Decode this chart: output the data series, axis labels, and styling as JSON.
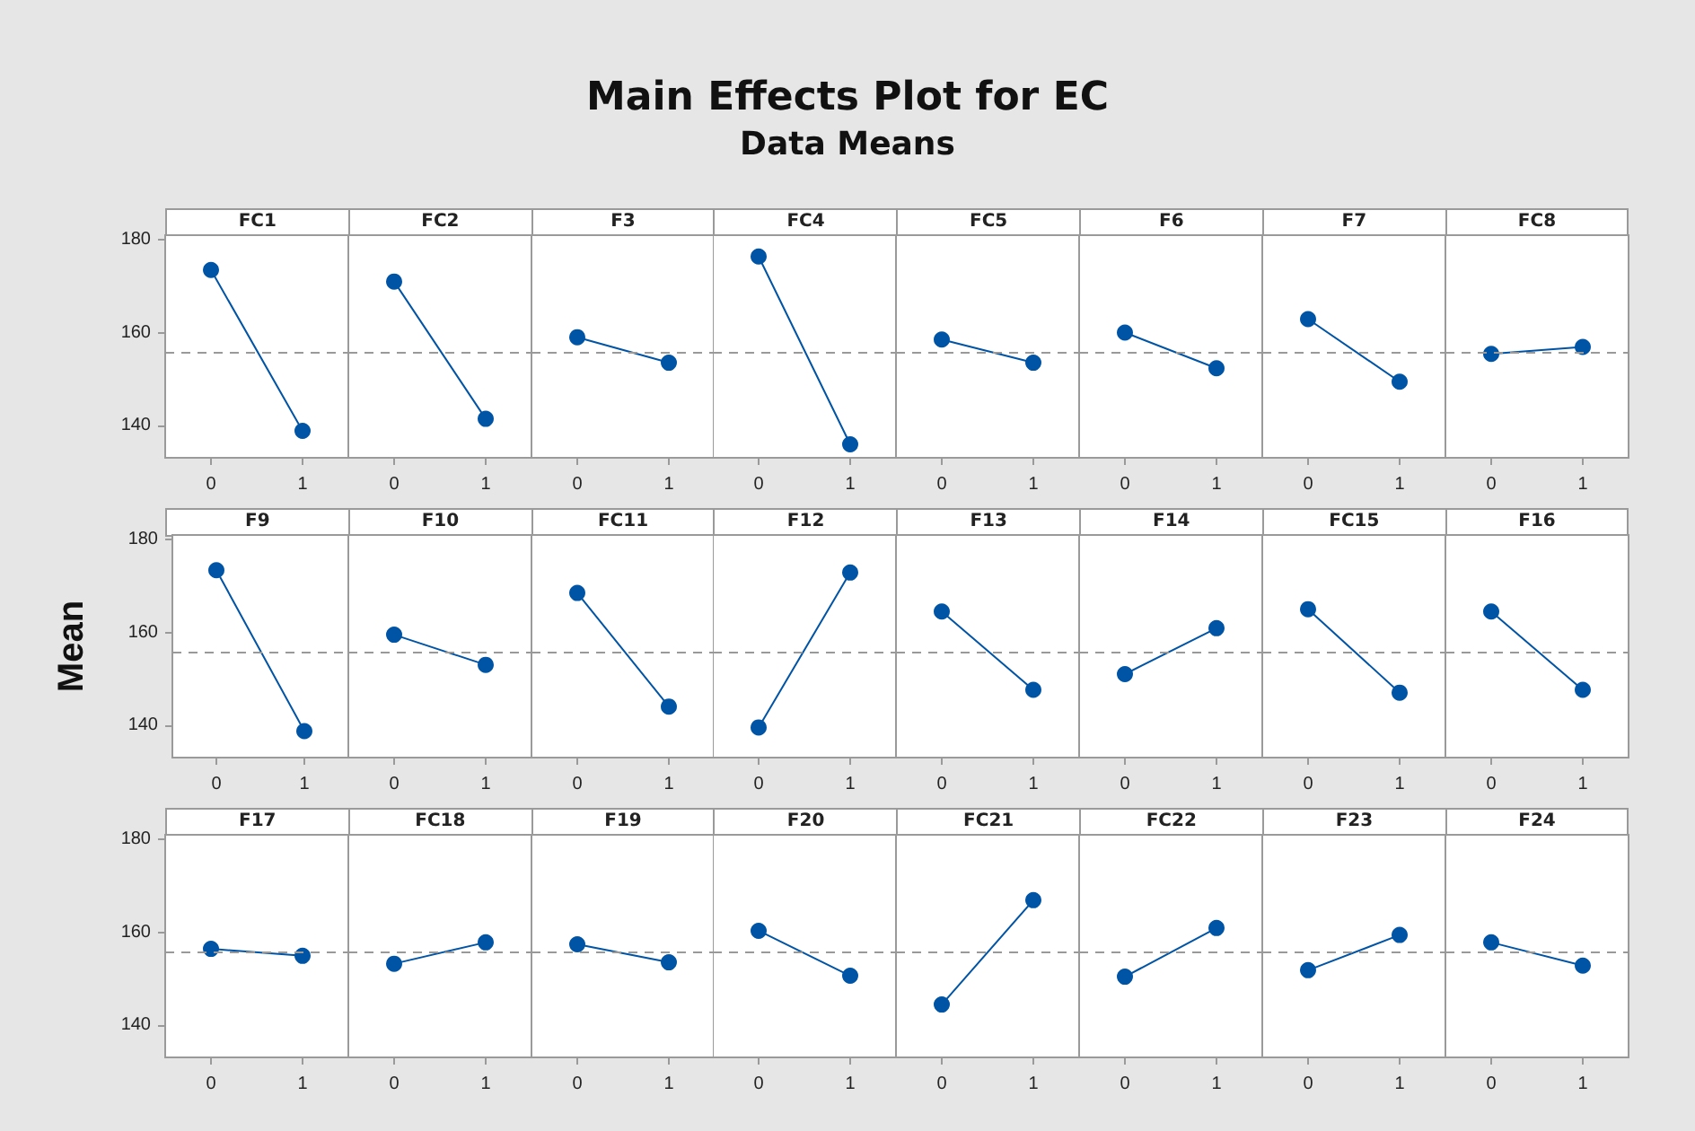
{
  "chart_data": [
    {
      "type": "other",
      "title": "Main Effects Plot for EC",
      "subtitle": "Data Means"
    },
    {
      "type": "line",
      "title": "FC1",
      "categories": [
        "0",
        "1"
      ],
      "series": [
        {
          "color": "#0054a6",
          "values": [
            173.5,
            138.8
          ]
        }
      ],
      "ylim": [
        133,
        181
      ],
      "yticks": [
        140,
        160,
        180
      ],
      "marker": "circle",
      "line_style": "solid",
      "ref_lines": [
        {
          "axis": "y",
          "value": 155.6,
          "color": "#999999",
          "line_style": "dashed"
        }
      ]
    },
    {
      "type": "line",
      "title": "FC2",
      "categories": [
        "0",
        "1"
      ],
      "series": [
        {
          "color": "#0054a6",
          "values": [
            171.0,
            141.4
          ]
        }
      ],
      "ylim": [
        133,
        181
      ],
      "yticks": [
        140,
        160,
        180
      ],
      "tick_labels": "x",
      "marker": "circle",
      "line_style": "solid",
      "ref_lines": [
        {
          "axis": "y",
          "value": 155.6,
          "color": "#999999",
          "line_style": "dashed"
        }
      ]
    },
    {
      "type": "line",
      "title": "F3",
      "categories": [
        "0",
        "1"
      ],
      "series": [
        {
          "color": "#0054a6",
          "values": [
            159.0,
            153.5
          ]
        }
      ],
      "ylim": [
        133,
        181
      ],
      "yticks": [
        140,
        160,
        180
      ],
      "tick_labels": "x",
      "marker": "circle",
      "line_style": "solid",
      "ref_lines": [
        {
          "axis": "y",
          "value": 155.6,
          "color": "#999999",
          "line_style": "dashed"
        }
      ]
    },
    {
      "type": "line",
      "title": "FC4",
      "categories": [
        "0",
        "1"
      ],
      "series": [
        {
          "color": "#0054a6",
          "values": [
            176.4,
            135.9
          ]
        }
      ],
      "ylim": [
        133,
        181
      ],
      "yticks": [
        140,
        160,
        180
      ],
      "tick_labels": "x",
      "marker": "circle",
      "line_style": "solid",
      "ref_lines": [
        {
          "axis": "y",
          "value": 155.6,
          "color": "#999999",
          "line_style": "dashed"
        }
      ]
    },
    {
      "type": "line",
      "title": "FC5",
      "categories": [
        "0",
        "1"
      ],
      "series": [
        {
          "color": "#0054a6",
          "values": [
            158.5,
            153.5
          ]
        }
      ],
      "ylim": [
        133,
        181
      ],
      "yticks": [
        140,
        160,
        180
      ],
      "tick_labels": "x",
      "marker": "circle",
      "line_style": "solid",
      "ref_lines": [
        {
          "axis": "y",
          "value": 155.6,
          "color": "#999999",
          "line_style": "dashed"
        }
      ]
    },
    {
      "type": "line",
      "title": "F6",
      "categories": [
        "0",
        "1"
      ],
      "series": [
        {
          "color": "#0054a6",
          "values": [
            160.0,
            152.3
          ]
        }
      ],
      "ylim": [
        133,
        181
      ],
      "yticks": [
        140,
        160,
        180
      ],
      "tick_labels": "x",
      "marker": "circle",
      "line_style": "solid",
      "ref_lines": [
        {
          "axis": "y",
          "value": 155.6,
          "color": "#999999",
          "line_style": "dashed"
        }
      ]
    },
    {
      "type": "line",
      "title": "F7",
      "categories": [
        "0",
        "1"
      ],
      "series": [
        {
          "color": "#0054a6",
          "values": [
            162.9,
            149.4
          ]
        }
      ],
      "ylim": [
        133,
        181
      ],
      "yticks": [
        140,
        160,
        180
      ],
      "tick_labels": "x",
      "marker": "circle",
      "line_style": "solid",
      "ref_lines": [
        {
          "axis": "y",
          "value": 155.6,
          "color": "#999999",
          "line_style": "dashed"
        }
      ]
    },
    {
      "type": "line",
      "title": "FC8",
      "categories": [
        "0",
        "1"
      ],
      "series": [
        {
          "color": "#0054a6",
          "values": [
            155.4,
            156.9
          ]
        }
      ],
      "ylim": [
        133,
        181
      ],
      "yticks": [
        140,
        160,
        180
      ],
      "tick_labels": "x",
      "marker": "circle",
      "line_style": "solid",
      "ref_lines": [
        {
          "axis": "y",
          "value": 155.6,
          "color": "#999999",
          "line_style": "dashed"
        }
      ]
    },
    {
      "type": "line",
      "title": "F9",
      "ylabel": "Mean",
      "categories": [
        "0",
        "1"
      ],
      "series": [
        {
          "color": "#0054a6",
          "values": [
            173.4,
            138.7
          ]
        }
      ],
      "ylim": [
        133,
        181
      ],
      "yticks": [
        140,
        160,
        180
      ],
      "marker": "circle",
      "line_style": "solid",
      "ref_lines": [
        {
          "axis": "y",
          "value": 155.6,
          "color": "#999999",
          "line_style": "dashed"
        }
      ]
    },
    {
      "type": "line",
      "title": "F10",
      "categories": [
        "0",
        "1"
      ],
      "series": [
        {
          "color": "#0054a6",
          "values": [
            159.5,
            153.0
          ]
        }
      ],
      "ylim": [
        133,
        181
      ],
      "yticks": [
        140,
        160,
        180
      ],
      "tick_labels": "x",
      "marker": "circle",
      "line_style": "solid",
      "ref_lines": [
        {
          "axis": "y",
          "value": 155.6,
          "color": "#999999",
          "line_style": "dashed"
        }
      ]
    },
    {
      "type": "line",
      "title": "FC11",
      "categories": [
        "0",
        "1"
      ],
      "series": [
        {
          "color": "#0054a6",
          "values": [
            168.5,
            144.0
          ]
        }
      ],
      "ylim": [
        133,
        181
      ],
      "yticks": [
        140,
        160,
        180
      ],
      "tick_labels": "x",
      "marker": "circle",
      "line_style": "solid",
      "ref_lines": [
        {
          "axis": "y",
          "value": 155.6,
          "color": "#999999",
          "line_style": "dashed"
        }
      ]
    },
    {
      "type": "line",
      "title": "F12",
      "categories": [
        "0",
        "1"
      ],
      "series": [
        {
          "color": "#0054a6",
          "values": [
            139.5,
            172.9
          ]
        }
      ],
      "ylim": [
        133,
        181
      ],
      "yticks": [
        140,
        160,
        180
      ],
      "tick_labels": "x",
      "marker": "circle",
      "line_style": "solid",
      "ref_lines": [
        {
          "axis": "y",
          "value": 155.6,
          "color": "#999999",
          "line_style": "dashed"
        }
      ]
    },
    {
      "type": "line",
      "title": "F13",
      "categories": [
        "0",
        "1"
      ],
      "series": [
        {
          "color": "#0054a6",
          "values": [
            164.5,
            147.6
          ]
        }
      ],
      "ylim": [
        133,
        181
      ],
      "yticks": [
        140,
        160,
        180
      ],
      "tick_labels": "x",
      "marker": "circle",
      "line_style": "solid",
      "ref_lines": [
        {
          "axis": "y",
          "value": 155.6,
          "color": "#999999",
          "line_style": "dashed"
        }
      ]
    },
    {
      "type": "line",
      "title": "F14",
      "categories": [
        "0",
        "1"
      ],
      "series": [
        {
          "color": "#0054a6",
          "values": [
            151.0,
            160.9
          ]
        }
      ],
      "ylim": [
        133,
        181
      ],
      "yticks": [
        140,
        160,
        180
      ],
      "tick_labels": "x",
      "marker": "circle",
      "line_style": "solid",
      "ref_lines": [
        {
          "axis": "y",
          "value": 155.6,
          "color": "#999999",
          "line_style": "dashed"
        }
      ]
    },
    {
      "type": "line",
      "title": "FC15",
      "categories": [
        "0",
        "1"
      ],
      "series": [
        {
          "color": "#0054a6",
          "values": [
            165.0,
            147.0
          ]
        }
      ],
      "ylim": [
        133,
        181
      ],
      "yticks": [
        140,
        160,
        180
      ],
      "tick_labels": "x",
      "marker": "circle",
      "line_style": "solid",
      "ref_lines": [
        {
          "axis": "y",
          "value": 155.6,
          "color": "#999999",
          "line_style": "dashed"
        }
      ]
    },
    {
      "type": "line",
      "title": "F16",
      "categories": [
        "0",
        "1"
      ],
      "series": [
        {
          "color": "#0054a6",
          "values": [
            164.5,
            147.6
          ]
        }
      ],
      "ylim": [
        133,
        181
      ],
      "yticks": [
        140,
        160,
        180
      ],
      "tick_labels": "x",
      "marker": "circle",
      "line_style": "solid",
      "ref_lines": [
        {
          "axis": "y",
          "value": 155.6,
          "color": "#999999",
          "line_style": "dashed"
        }
      ]
    },
    {
      "type": "line",
      "title": "F17",
      "categories": [
        "0",
        "1"
      ],
      "series": [
        {
          "color": "#0054a6",
          "values": [
            156.4,
            154.9
          ]
        }
      ],
      "ylim": [
        133,
        181
      ],
      "yticks": [
        140,
        160,
        180
      ],
      "marker": "circle",
      "line_style": "solid",
      "ref_lines": [
        {
          "axis": "y",
          "value": 155.6,
          "color": "#999999",
          "line_style": "dashed"
        }
      ]
    },
    {
      "type": "line",
      "title": "FC18",
      "categories": [
        "0",
        "1"
      ],
      "series": [
        {
          "color": "#0054a6",
          "values": [
            153.2,
            157.8
          ]
        }
      ],
      "ylim": [
        133,
        181
      ],
      "yticks": [
        140,
        160,
        180
      ],
      "tick_labels": "x",
      "marker": "circle",
      "line_style": "solid",
      "ref_lines": [
        {
          "axis": "y",
          "value": 155.6,
          "color": "#999999",
          "line_style": "dashed"
        }
      ]
    },
    {
      "type": "line",
      "title": "F19",
      "categories": [
        "0",
        "1"
      ],
      "series": [
        {
          "color": "#0054a6",
          "values": [
            157.4,
            153.5
          ]
        }
      ],
      "ylim": [
        133,
        181
      ],
      "yticks": [
        140,
        160,
        180
      ],
      "tick_labels": "x",
      "marker": "circle",
      "line_style": "solid",
      "ref_lines": [
        {
          "axis": "y",
          "value": 155.6,
          "color": "#999999",
          "line_style": "dashed"
        }
      ]
    },
    {
      "type": "line",
      "title": "F20",
      "categories": [
        "0",
        "1"
      ],
      "series": [
        {
          "color": "#0054a6",
          "values": [
            160.3,
            150.6
          ]
        }
      ],
      "ylim": [
        133,
        181
      ],
      "yticks": [
        140,
        160,
        180
      ],
      "tick_labels": "x",
      "marker": "circle",
      "line_style": "solid",
      "ref_lines": [
        {
          "axis": "y",
          "value": 155.6,
          "color": "#999999",
          "line_style": "dashed"
        }
      ]
    },
    {
      "type": "line",
      "title": "FC21",
      "categories": [
        "0",
        "1"
      ],
      "series": [
        {
          "color": "#0054a6",
          "values": [
            144.4,
            166.9
          ]
        }
      ],
      "ylim": [
        133,
        181
      ],
      "yticks": [
        140,
        160,
        180
      ],
      "tick_labels": "x",
      "marker": "circle",
      "line_style": "solid",
      "ref_lines": [
        {
          "axis": "y",
          "value": 155.6,
          "color": "#999999",
          "line_style": "dashed"
        }
      ]
    },
    {
      "type": "line",
      "title": "FC22",
      "categories": [
        "0",
        "1"
      ],
      "series": [
        {
          "color": "#0054a6",
          "values": [
            150.4,
            160.9
          ]
        }
      ],
      "ylim": [
        133,
        181
      ],
      "yticks": [
        140,
        160,
        180
      ],
      "tick_labels": "x",
      "marker": "circle",
      "line_style": "solid",
      "ref_lines": [
        {
          "axis": "y",
          "value": 155.6,
          "color": "#999999",
          "line_style": "dashed"
        }
      ]
    },
    {
      "type": "line",
      "title": "F23",
      "categories": [
        "0",
        "1"
      ],
      "series": [
        {
          "color": "#0054a6",
          "values": [
            151.8,
            159.4
          ]
        }
      ],
      "ylim": [
        133,
        181
      ],
      "yticks": [
        140,
        160,
        180
      ],
      "tick_labels": "x",
      "marker": "circle",
      "line_style": "solid",
      "ref_lines": [
        {
          "axis": "y",
          "value": 155.6,
          "color": "#999999",
          "line_style": "dashed"
        }
      ]
    },
    {
      "type": "line",
      "title": "F24",
      "categories": [
        "0",
        "1"
      ],
      "series": [
        {
          "color": "#0054a6",
          "values": [
            157.8,
            152.8
          ]
        }
      ],
      "ylim": [
        133,
        181
      ],
      "yticks": [
        140,
        160,
        180
      ],
      "tick_labels": "x",
      "marker": "circle",
      "line_style": "solid",
      "ref_lines": [
        {
          "axis": "y",
          "value": 155.6,
          "color": "#999999",
          "line_style": "dashed"
        }
      ]
    }
  ]
}
